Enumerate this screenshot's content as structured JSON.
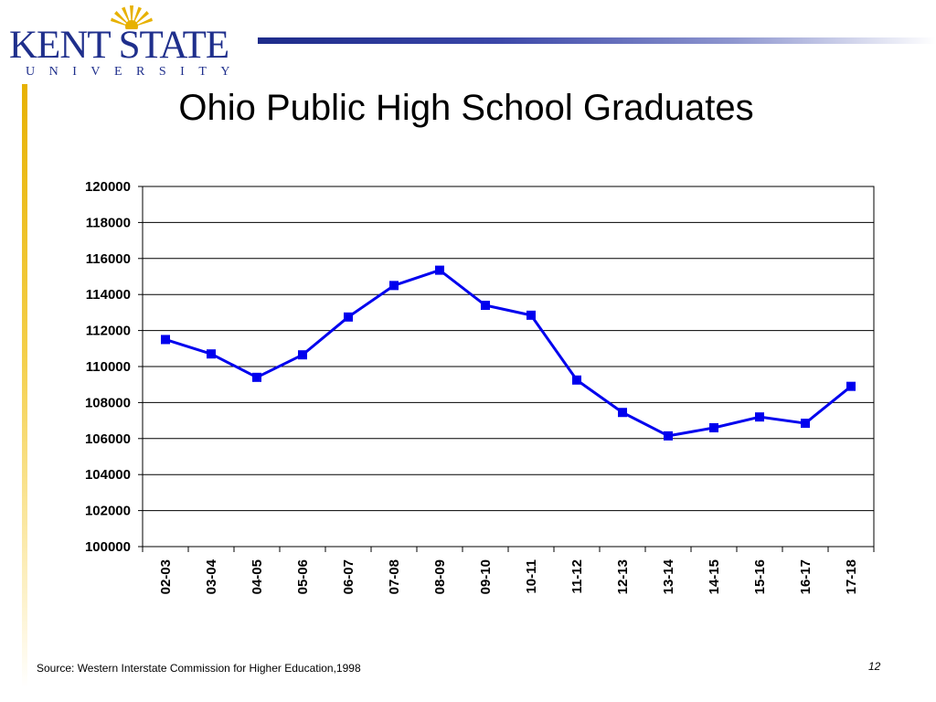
{
  "header": {
    "logo_text": "KENT STATE",
    "logo_subtext": "UNIVERSITY"
  },
  "slide": {
    "title": "Ohio Public High School Graduates",
    "source": "Source: Western Interstate Commission for Higher Education,1998",
    "page_number": "12"
  },
  "colors": {
    "series_line": "#0000ee",
    "logo_blue": "#1f2f8c",
    "accent_gold": "#e7b100"
  },
  "chart_data": {
    "type": "line",
    "title": "Ohio Public High School Graduates",
    "xlabel": "",
    "ylabel": "",
    "categories": [
      "02-03",
      "03-04",
      "04-05",
      "05-06",
      "06-07",
      "07-08",
      "08-09",
      "09-10",
      "10-11",
      "11-12",
      "12-13",
      "13-14",
      "14-15",
      "15-16",
      "16-17",
      "17-18"
    ],
    "series": [
      {
        "values": [
          111500,
          110700,
          109400,
          110650,
          112750,
          114500,
          115350,
          113400,
          112850,
          109250,
          107450,
          106150,
          106600,
          107200,
          106850,
          108900
        ]
      }
    ],
    "ylim": [
      100000,
      120000
    ],
    "yticks": [
      120000,
      118000,
      116000,
      114000,
      112000,
      110000,
      108000,
      106000,
      104000,
      102000,
      100000
    ],
    "grid": true,
    "legend": "none",
    "marker": "square"
  }
}
